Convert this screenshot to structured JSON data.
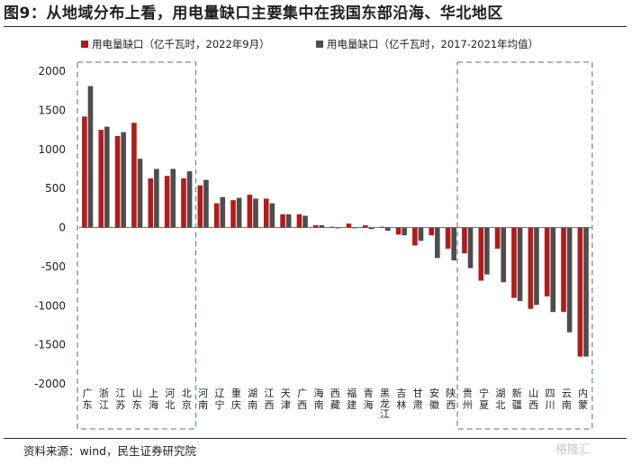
{
  "header": {
    "title": "图9：从地域分布上看，用电量缺口主要集中在我国东部沿海、华北地区"
  },
  "footer": {
    "source": "资料来源：wind，民生证券研究院",
    "watermark": "格隆汇"
  },
  "colors": {
    "series1": "#b31b1b",
    "series2": "#4d4d4d",
    "box": "#6f8ea6"
  },
  "chart_data": {
    "type": "bar",
    "title": "",
    "xlabel": "",
    "ylabel": "",
    "ylim": [
      -2000,
      2000
    ],
    "yticks": [
      2000,
      1500,
      1000,
      500,
      0,
      -500,
      -1000,
      -1500,
      -2000
    ],
    "legend_position": "top",
    "categories": [
      "广东",
      "浙江",
      "江苏",
      "山东",
      "上海",
      "河北",
      "北京",
      "河南",
      "辽宁",
      "重庆",
      "湖南",
      "江西",
      "天津",
      "广西",
      "海南",
      "西藏",
      "福建",
      "青海",
      "黑龙江",
      "吉林",
      "甘肃",
      "安徽",
      "陕西",
      "贵州",
      "宁夏",
      "湖北",
      "新疆",
      "山西",
      "四川",
      "云南",
      "内蒙"
    ],
    "series": [
      {
        "name": "用电量缺口（亿千瓦时，2022年9月）",
        "values": [
          1420,
          1250,
          1170,
          1340,
          630,
          660,
          630,
          540,
          310,
          350,
          420,
          370,
          170,
          170,
          30,
          10,
          50,
          30,
          10,
          -90,
          -230,
          -100,
          -270,
          -330,
          -680,
          -270,
          -900,
          -1040,
          -880,
          -1080,
          -1650
        ]
      },
      {
        "name": "用电量缺口（亿千瓦时，2017-2021年均值）",
        "values": [
          1810,
          1290,
          1220,
          880,
          750,
          750,
          720,
          610,
          390,
          380,
          370,
          310,
          170,
          150,
          30,
          -10,
          -10,
          -20,
          -40,
          -100,
          -170,
          -390,
          -420,
          -520,
          -600,
          -700,
          -940,
          -990,
          -1080,
          -1340,
          -1650
        ]
      }
    ],
    "highlight_groups": [
      [
        "广东",
        "浙江",
        "江苏",
        "山东",
        "上海",
        "河北",
        "北京"
      ],
      [
        "贵州",
        "宁夏",
        "湖北",
        "新疆",
        "山西",
        "四川",
        "云南",
        "内蒙"
      ]
    ]
  }
}
